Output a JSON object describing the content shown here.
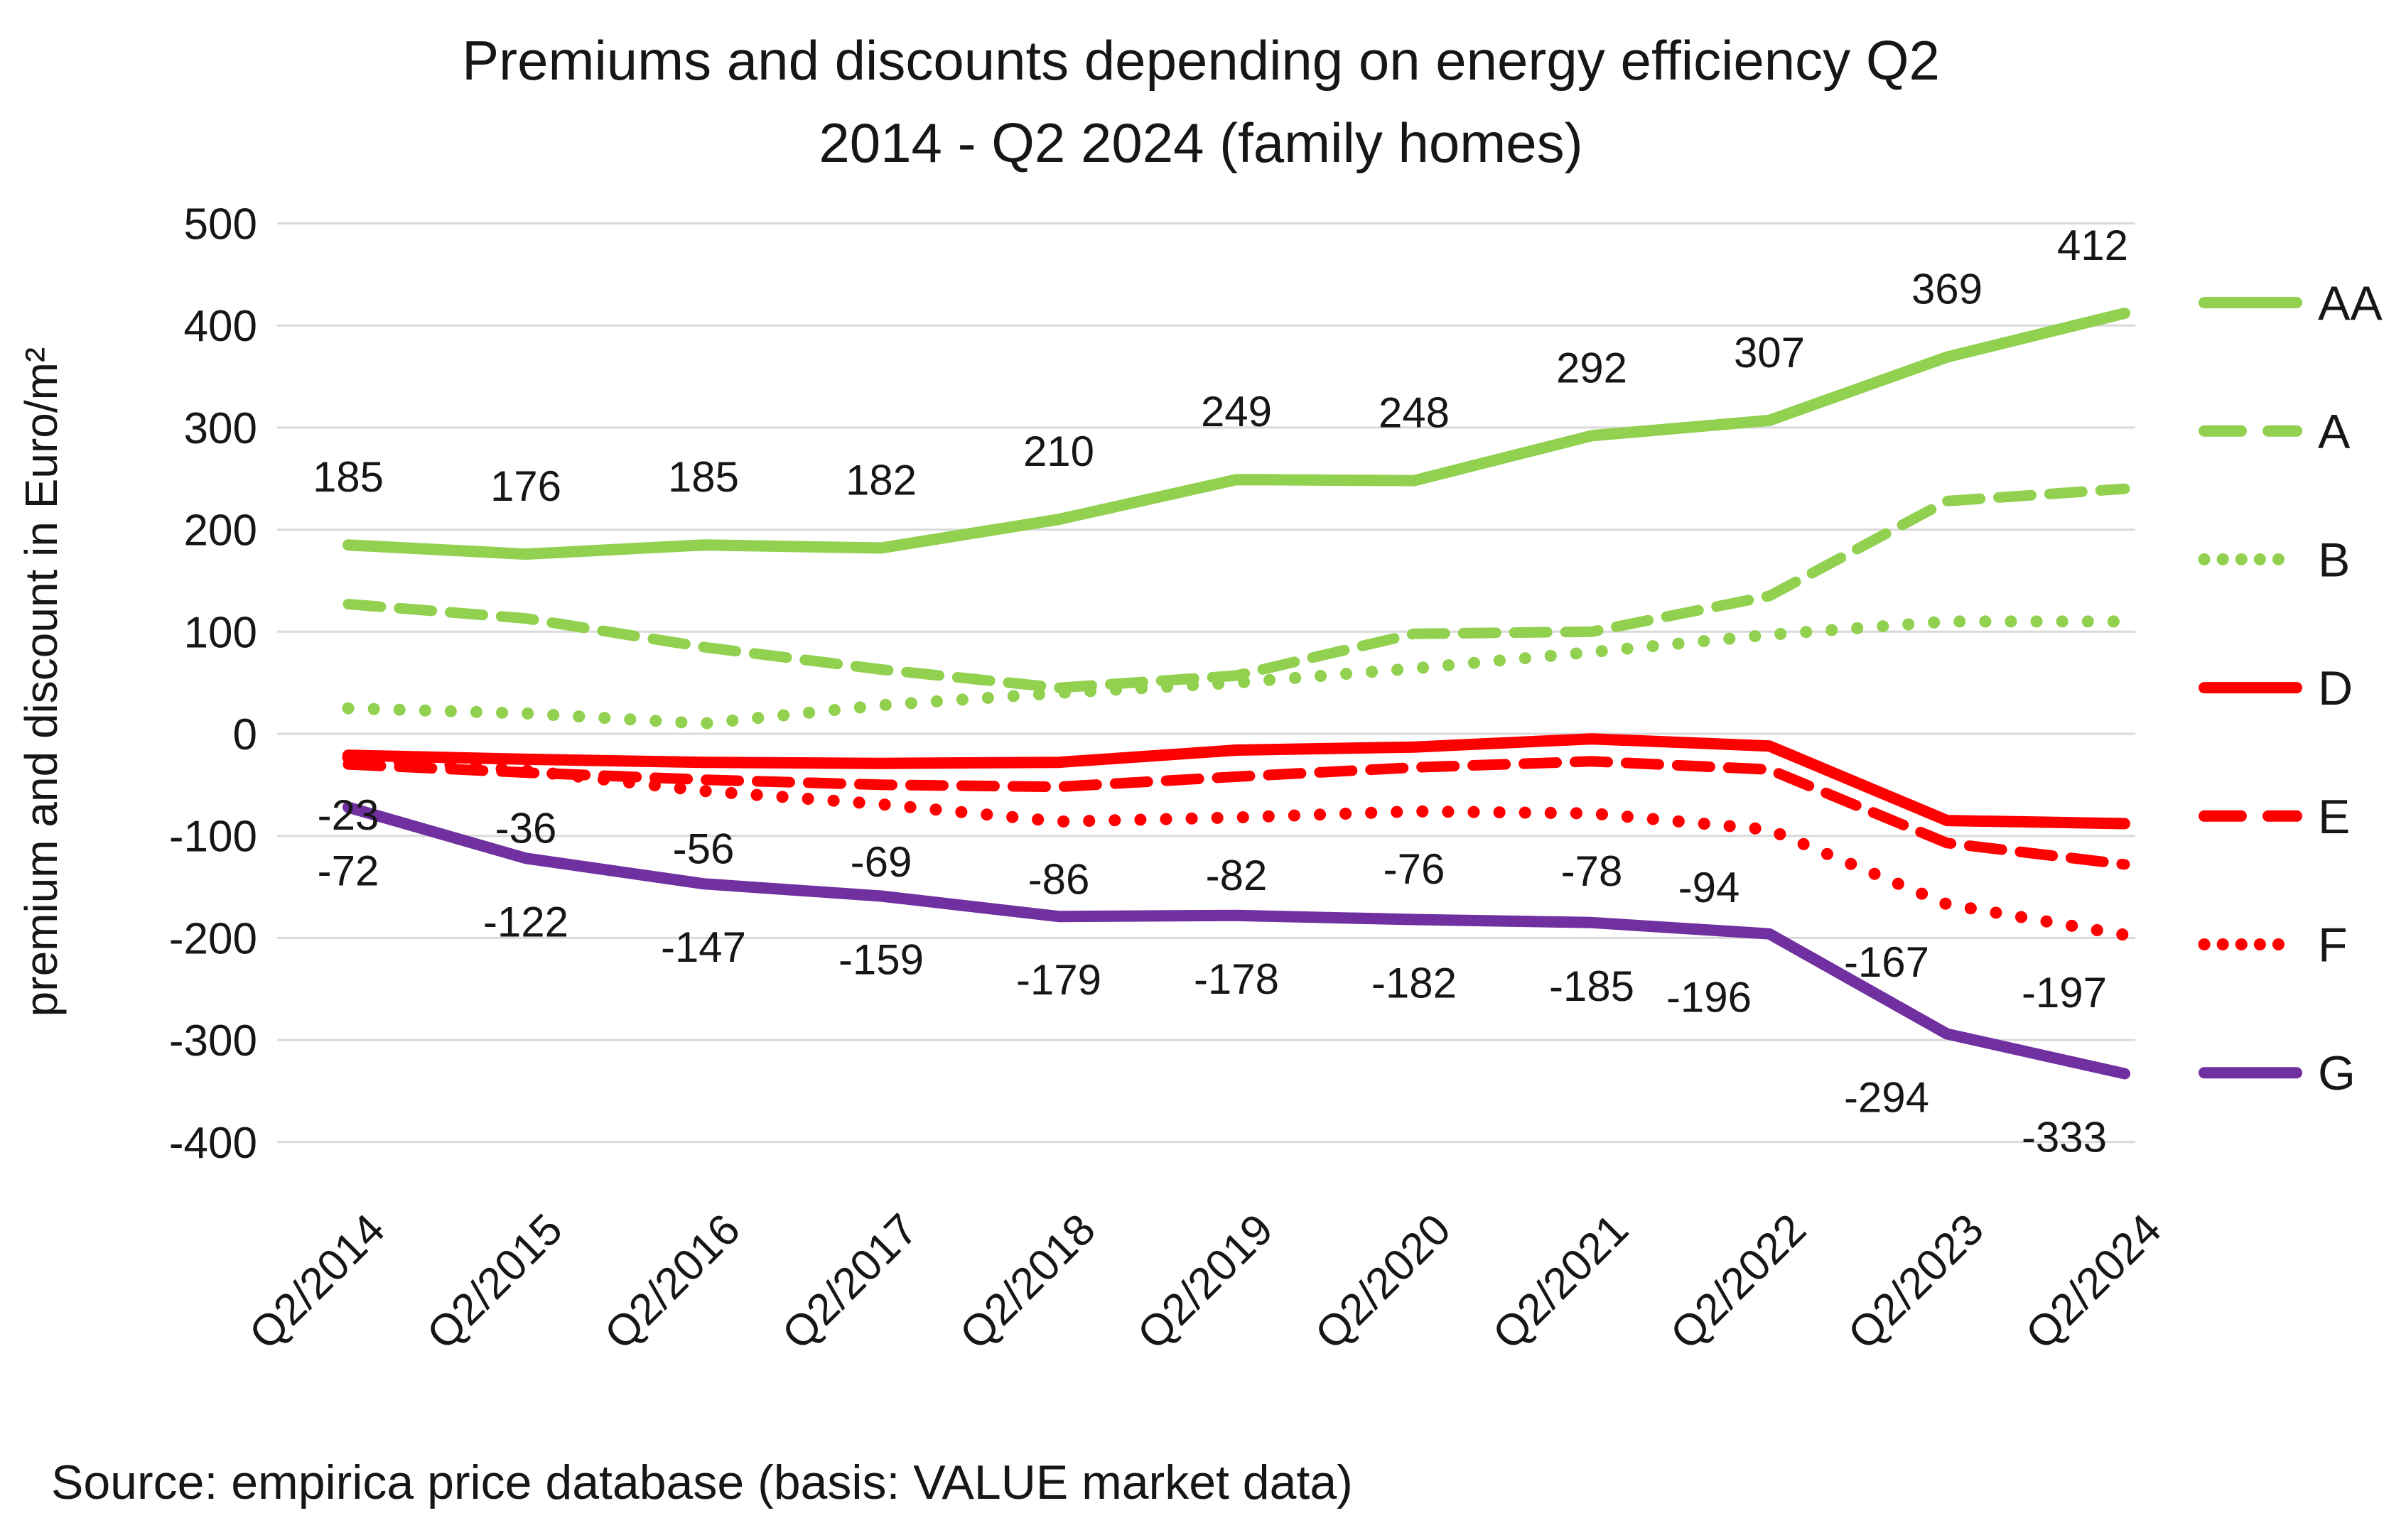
{
  "title": {
    "line1": "Premiums and discounts depending on energy efficiency Q2",
    "line2": "2014 - Q2 2024 (family homes)"
  },
  "ylabel": "premium and discount in Euro/m²",
  "source": "Source: empirica price database (basis: VALUE market data)",
  "colors": {
    "green": "#92d050",
    "red": "#ff0000",
    "purple": "#7030a0",
    "grid": "#d9d9d9",
    "text": "#161616",
    "background": "#ffffff"
  },
  "chart_data": {
    "type": "line",
    "categories": [
      "Q2/2014",
      "Q2/2015",
      "Q2/2016",
      "Q2/2017",
      "Q2/2018",
      "Q2/2019",
      "Q2/2020",
      "Q2/2021",
      "Q2/2022",
      "Q2/2023",
      "Q2/2024"
    ],
    "xlabel": "",
    "ylabel": "premium and discount in Euro/m²",
    "ylim": [
      -400,
      500
    ],
    "yticks": [
      500,
      400,
      300,
      200,
      100,
      0,
      -100,
      -200,
      -300,
      -400
    ],
    "grid": true,
    "legend_position": "right",
    "series": [
      {
        "name": "AA",
        "color": "#92d050",
        "style": "solid",
        "labeled": true,
        "label_side": "above",
        "values": [
          185,
          176,
          185,
          182,
          210,
          249,
          248,
          292,
          307,
          369,
          412
        ]
      },
      {
        "name": "A",
        "color": "#92d050",
        "style": "dash",
        "labeled": false,
        "label_side": "none",
        "values": [
          127,
          113,
          85,
          63,
          45,
          57,
          98,
          100,
          135,
          228,
          240
        ]
      },
      {
        "name": "B",
        "color": "#92d050",
        "style": "dot",
        "labeled": false,
        "label_side": "none",
        "values": [
          25,
          20,
          10,
          28,
          40,
          50,
          64,
          80,
          97,
          110,
          110
        ]
      },
      {
        "name": "D",
        "color": "#ff0000",
        "style": "solid",
        "labeled": false,
        "label_side": "none",
        "values": [
          -21,
          -25,
          -28,
          -29,
          -28,
          -16,
          -13,
          -5,
          -12,
          -85,
          -88
        ]
      },
      {
        "name": "E",
        "color": "#ff0000",
        "style": "dash",
        "labeled": false,
        "label_side": "none",
        "values": [
          -30,
          -38,
          -45,
          -50,
          -52,
          -42,
          -33,
          -27,
          -35,
          -107,
          -128
        ]
      },
      {
        "name": "F",
        "color": "#ff0000",
        "style": "dot",
        "labeled": true,
        "label_side": "below",
        "values": [
          -23,
          -36,
          -56,
          -69,
          -86,
          -82,
          -76,
          -78,
          -94,
          -167,
          -197
        ]
      },
      {
        "name": "G",
        "color": "#7030a0",
        "style": "solid",
        "labeled": true,
        "label_side": "below",
        "values": [
          -72,
          -122,
          -147,
          -159,
          -179,
          -178,
          -182,
          -185,
          -196,
          -294,
          -333
        ]
      }
    ]
  }
}
